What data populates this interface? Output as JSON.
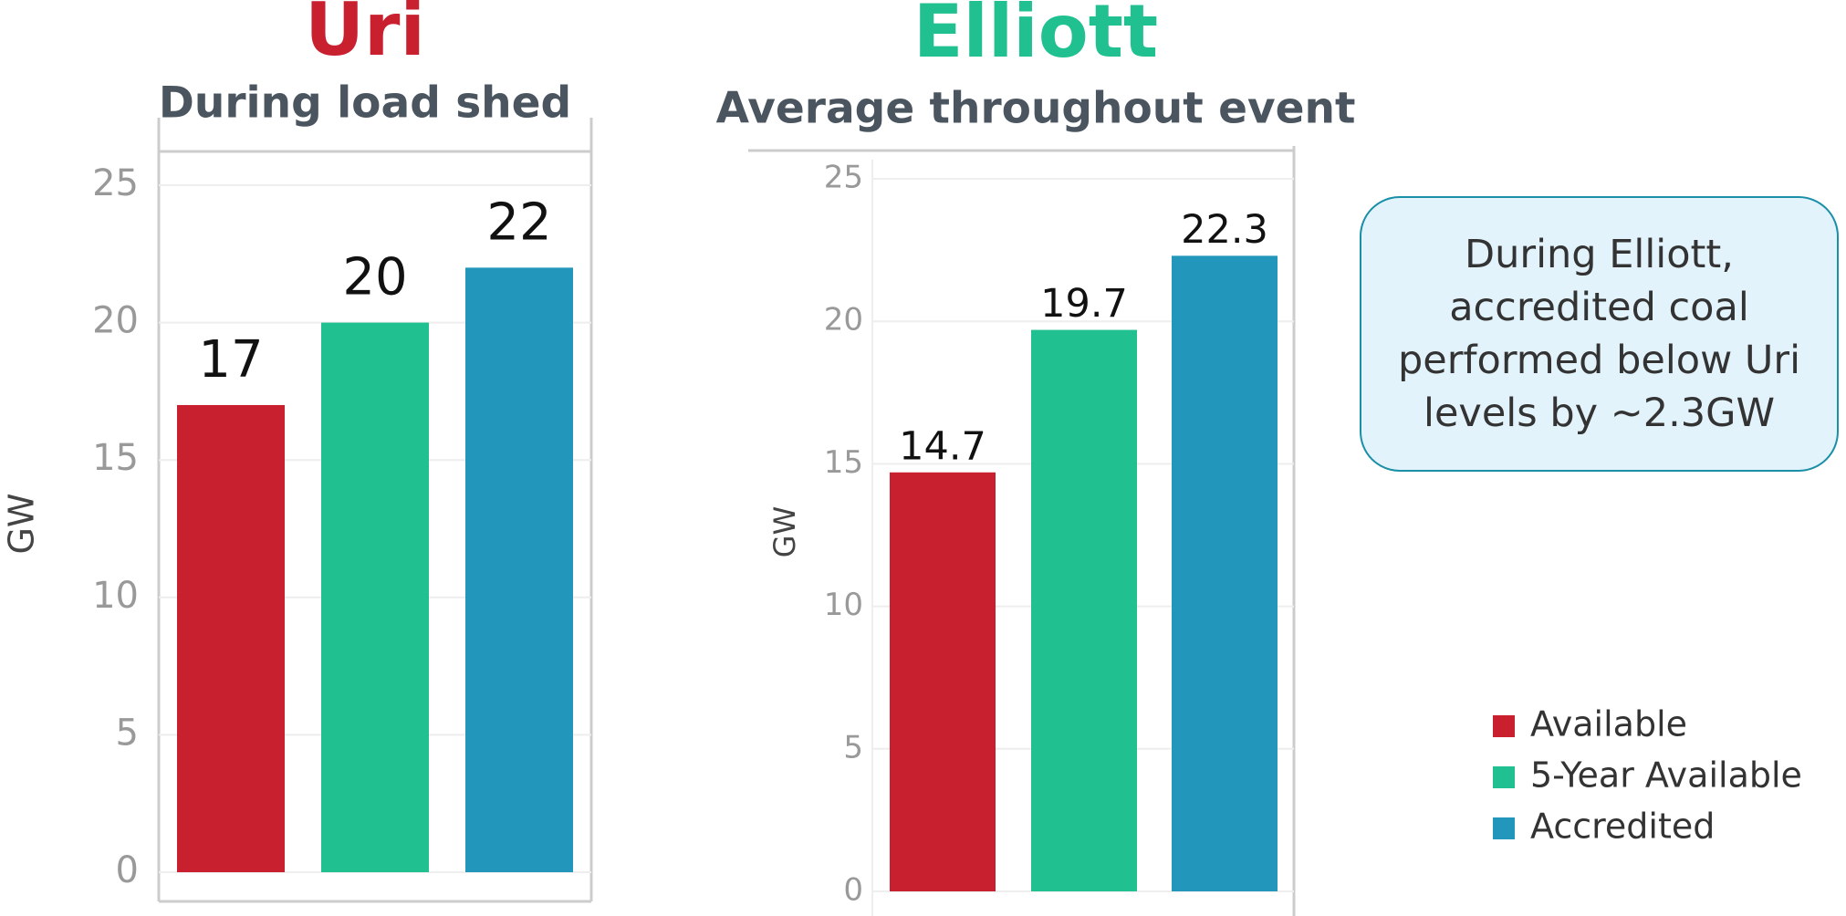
{
  "chart_data": [
    {
      "type": "bar",
      "title": "Uri",
      "title_color": "#c8202f",
      "subtitle": "During load shed",
      "ylabel": "GW",
      "values": [
        17,
        20,
        22
      ],
      "ylim": [
        0,
        25
      ],
      "yticks": [
        0,
        5,
        10,
        15,
        20,
        25
      ],
      "grid": true
    },
    {
      "type": "bar",
      "title": "Elliott",
      "title_color": "#20c090",
      "subtitle": "Average throughout event",
      "ylabel": "GW",
      "values": [
        14.7,
        19.7,
        22.3
      ],
      "ylim": [
        0,
        25
      ],
      "yticks": [
        0,
        5,
        10,
        15,
        20,
        25
      ],
      "grid": true
    }
  ],
  "legend": [
    {
      "name": "Available",
      "color": "#c8202f"
    },
    {
      "name": "5-Year Available",
      "color": "#20c090"
    },
    {
      "name": "Accredited",
      "color": "#2397bb"
    }
  ],
  "annotation": "During Elliott,\naccredited coal\nperformed below Uri\nlevels by ~2.3GW"
}
